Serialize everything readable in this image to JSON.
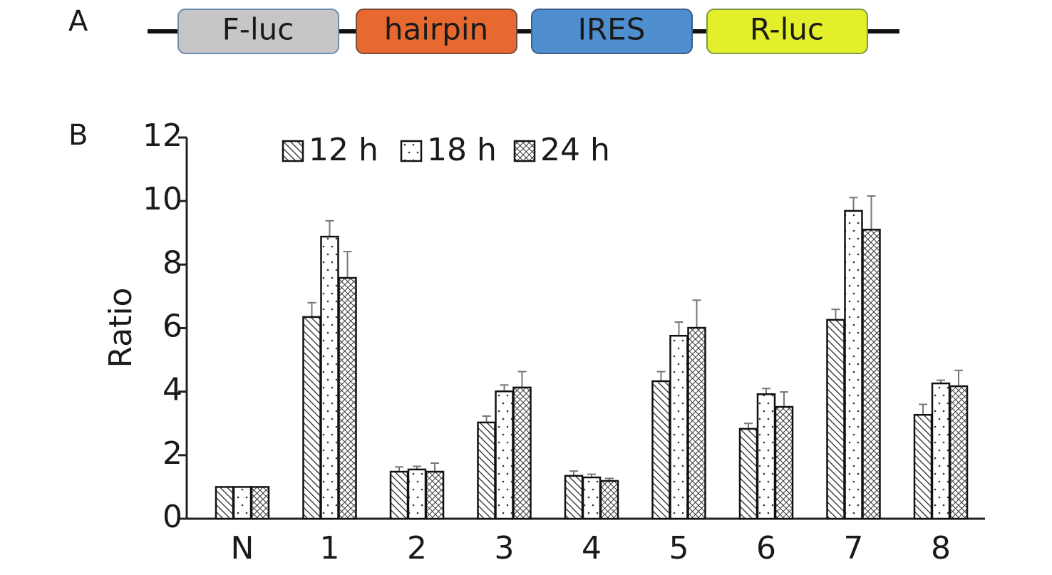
{
  "panel_a": {
    "label": "A",
    "boxes": [
      {
        "label": "F-luc",
        "color": "#c6c6c6",
        "border": "#6f8db0"
      },
      {
        "label": "hairpin",
        "color": "#e8692f",
        "border": "#7a4a3a"
      },
      {
        "label": "IRES",
        "color": "#4f8fd0",
        "border": "#3a5f8a"
      },
      {
        "label": "R-luc",
        "color": "#e2ef2a",
        "border": "#7f9a4a"
      }
    ]
  },
  "chart_data": {
    "type": "bar",
    "panel_label": "B",
    "y_label": "Ratio",
    "categories": [
      "N",
      "1",
      "2",
      "3",
      "4",
      "5",
      "6",
      "7",
      "8"
    ],
    "series": [
      {
        "name": "12 h",
        "color": "#111111",
        "pattern": "hatch",
        "values": [
          1,
          6.35,
          1.48,
          3.03,
          1.35,
          4.33,
          2.83,
          6.26,
          3.27
        ],
        "errors": [
          0,
          0.45,
          0.15,
          0.2,
          0.15,
          0.3,
          0.17,
          0.33,
          0.33
        ]
      },
      {
        "name": "18 h",
        "color": "#111111",
        "pattern": "dots",
        "values": [
          1,
          8.88,
          1.55,
          4.01,
          1.3,
          5.76,
          3.92,
          9.69,
          4.26
        ],
        "errors": [
          0,
          0.5,
          0.1,
          0.2,
          0.1,
          0.43,
          0.18,
          0.42,
          0.1
        ]
      },
      {
        "name": "24 h",
        "color": "#111111",
        "pattern": "cross",
        "values": [
          1,
          7.58,
          1.48,
          4.13,
          1.19,
          6.01,
          3.52,
          9.1,
          4.17
        ],
        "errors": [
          0,
          0.83,
          0.27,
          0.5,
          0.08,
          0.87,
          0.47,
          1.06,
          0.5
        ]
      }
    ],
    "ylim": [
      0,
      12
    ],
    "yticks": [
      0,
      2,
      4,
      6,
      8,
      10,
      12
    ],
    "legend": "top"
  }
}
